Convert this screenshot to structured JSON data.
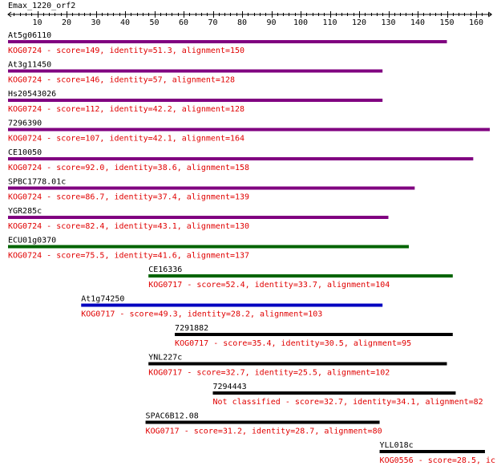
{
  "query": {
    "name": "Emax_1220_orf2"
  },
  "axis": {
    "min": 0,
    "max": 165,
    "major_step": 10,
    "minor_step": 2,
    "tick_labels": [
      "10",
      "20",
      "30",
      "40",
      "50",
      "60",
      "70",
      "80",
      "90",
      "100",
      "110",
      "120",
      "130",
      "140",
      "150",
      "160"
    ]
  },
  "hits": [
    {
      "name": "At5g06110",
      "kog": "KOG0724",
      "score": "149",
      "identity": "51.3",
      "alignment": "150",
      "start": 1,
      "end": 150,
      "color": "#800080"
    },
    {
      "name": "At3g11450",
      "kog": "KOG0724",
      "score": "146",
      "identity": "57",
      "alignment": "128",
      "start": 1,
      "end": 128,
      "color": "#800080"
    },
    {
      "name": "Hs20543026",
      "kog": "KOG0724",
      "score": "112",
      "identity": "42.2",
      "alignment": "128",
      "start": 1,
      "end": 128,
      "color": "#800080"
    },
    {
      "name": "7296390",
      "kog": "KOG0724",
      "score": "107",
      "identity": "42.1",
      "alignment": "164",
      "start": 1,
      "end": 165,
      "color": "#800080"
    },
    {
      "name": "CE10050",
      "kog": "KOG0724",
      "score": "92.0",
      "identity": "38.6",
      "alignment": "158",
      "start": 1,
      "end": 159,
      "color": "#800080"
    },
    {
      "name": "SPBC1778.01c",
      "kog": "KOG0724",
      "score": "86.7",
      "identity": "37.4",
      "alignment": "139",
      "start": 1,
      "end": 139,
      "color": "#800080"
    },
    {
      "name": "YGR285c",
      "kog": "KOG0724",
      "score": "82.4",
      "identity": "43.1",
      "alignment": "130",
      "start": 1,
      "end": 130,
      "color": "#800080"
    },
    {
      "name": "ECU01g0370",
      "kog": "KOG0724",
      "score": "75.5",
      "identity": "41.6",
      "alignment": "137",
      "start": 1,
      "end": 137,
      "color": "#006400"
    },
    {
      "name": "CE16336",
      "kog": "KOG0717",
      "score": "52.4",
      "identity": "33.7",
      "alignment": "104",
      "start": 49,
      "end": 152,
      "color": "#006400"
    },
    {
      "name": "At1g74250",
      "kog": "KOG0717",
      "score": "49.3",
      "identity": "28.2",
      "alignment": "103",
      "start": 26,
      "end": 128,
      "color": "#0000c0"
    },
    {
      "name": "7291882",
      "kog": "KOG0717",
      "score": "35.4",
      "identity": "30.5",
      "alignment": "95",
      "start": 58,
      "end": 152,
      "color": "#000000"
    },
    {
      "name": "YNL227c",
      "kog": "KOG0717",
      "score": "32.7",
      "identity": "25.5",
      "alignment": "102",
      "start": 49,
      "end": 150,
      "color": "#000000"
    },
    {
      "name": "7294443",
      "kog": "Not classified",
      "score": "32.7",
      "identity": "34.1",
      "alignment": "82",
      "start": 71,
      "end": 153,
      "color": "#000000"
    },
    {
      "name": "SPAC6B12.08",
      "kog": "KOG0717",
      "score": "31.2",
      "identity": "28.7",
      "alignment": "80",
      "start": 48,
      "end": 127,
      "color": "#000000"
    },
    {
      "name": "YLL018c",
      "kog": "KOG0556",
      "score": "28.5",
      "identity": "",
      "alignment": "",
      "start": 128,
      "end": 163,
      "color": "#000000",
      "truncated_text": "ic"
    }
  ]
}
